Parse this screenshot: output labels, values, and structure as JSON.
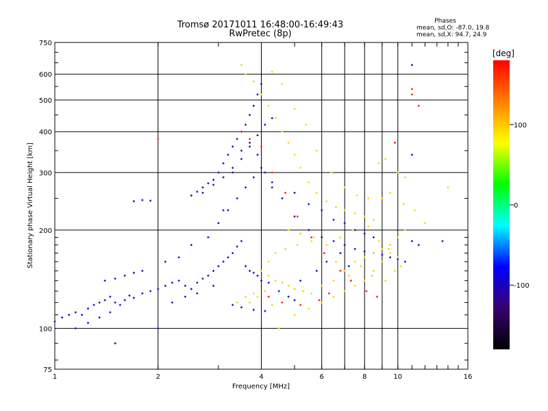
{
  "header": {
    "title_line1": "Tromsø 20171011 16:48:00-16:49:43",
    "title_line2": "RwPretec (8p)",
    "stats_heading": "Phases",
    "stats_o": "mean, sd,O: -87.0, 19.8",
    "stats_x": "mean, sd,X:  94.7, 24.9"
  },
  "chart_data": {
    "type": "scatter",
    "xlabel": "Frequency [MHz]",
    "ylabel": "Stationary phase Virtual Height [km]",
    "xscale": "log",
    "yscale": "log",
    "xlim": [
      1,
      16
    ],
    "ylim": [
      75,
      750
    ],
    "x_ticks": [
      1,
      2,
      4,
      6,
      8,
      10,
      16
    ],
    "x_tick_labels": [
      "1",
      "2",
      "4",
      "6",
      "8",
      "10",
      "16"
    ],
    "y_ticks": [
      75,
      100,
      200,
      300,
      400,
      500,
      600,
      750
    ],
    "y_tick_labels": [
      "75",
      "100",
      "200",
      "300",
      "400",
      "500",
      "600",
      "750"
    ],
    "grid": true,
    "colorbar": {
      "label": "[deg]",
      "range": [
        -180,
        180
      ],
      "ticks": [
        100,
        0,
        -100
      ],
      "tick_labels": [
        "100",
        "0",
        "-100"
      ],
      "colors": [
        "#000000",
        "#3a0070",
        "#0000ff",
        "#00ffff",
        "#00ff00",
        "#ffff00",
        "#ff8000",
        "#ff0000"
      ]
    },
    "series": [
      {
        "name": "O",
        "color_phase": -100,
        "points": [
          [
            1.0,
            105
          ],
          [
            1.05,
            108
          ],
          [
            1.1,
            110
          ],
          [
            1.15,
            112
          ],
          [
            1.2,
            110
          ],
          [
            1.25,
            115
          ],
          [
            1.3,
            118
          ],
          [
            1.35,
            120
          ],
          [
            1.4,
            122
          ],
          [
            1.45,
            125
          ],
          [
            1.5,
            120
          ],
          [
            1.55,
            118
          ],
          [
            1.6,
            122
          ],
          [
            1.65,
            126
          ],
          [
            1.7,
            124
          ],
          [
            1.8,
            128
          ],
          [
            1.9,
            130
          ],
          [
            2.0,
            132
          ],
          [
            2.1,
            135
          ],
          [
            2.2,
            138
          ],
          [
            2.3,
            140
          ],
          [
            2.4,
            135
          ],
          [
            2.5,
            132
          ],
          [
            2.6,
            138
          ],
          [
            2.7,
            142
          ],
          [
            2.8,
            145
          ],
          [
            2.9,
            150
          ],
          [
            3.0,
            155
          ],
          [
            3.1,
            160
          ],
          [
            3.2,
            165
          ],
          [
            3.3,
            170
          ],
          [
            3.4,
            178
          ],
          [
            3.5,
            185
          ],
          [
            1.4,
            140
          ],
          [
            1.5,
            142
          ],
          [
            1.6,
            145
          ],
          [
            1.7,
            148
          ],
          [
            1.8,
            150
          ],
          [
            2.1,
            160
          ],
          [
            2.3,
            165
          ],
          [
            2.5,
            255
          ],
          [
            2.6,
            262
          ],
          [
            2.7,
            270
          ],
          [
            2.8,
            278
          ],
          [
            2.9,
            285
          ],
          [
            3.0,
            300
          ],
          [
            3.1,
            320
          ],
          [
            3.2,
            340
          ],
          [
            3.3,
            360
          ],
          [
            3.4,
            380
          ],
          [
            3.5,
            400
          ],
          [
            3.6,
            420
          ],
          [
            3.7,
            450
          ],
          [
            3.8,
            480
          ],
          [
            3.9,
            520
          ],
          [
            4.0,
            560
          ],
          [
            1.7,
            245
          ],
          [
            1.8,
            247
          ],
          [
            1.9,
            246
          ],
          [
            3.6,
            155
          ],
          [
            3.7,
            150
          ],
          [
            3.8,
            148
          ],
          [
            3.9,
            145
          ],
          [
            4.0,
            140
          ],
          [
            4.2,
            138
          ],
          [
            4.5,
            130
          ],
          [
            4.8,
            125
          ],
          [
            5.0,
            122
          ],
          [
            3.3,
            118
          ],
          [
            3.5,
            116
          ],
          [
            3.8,
            114
          ],
          [
            4.1,
            113
          ],
          [
            1.5,
            90
          ],
          [
            2.0,
            100
          ],
          [
            2.5,
            180
          ],
          [
            2.8,
            190
          ],
          [
            3.0,
            210
          ],
          [
            3.2,
            230
          ],
          [
            3.4,
            250
          ],
          [
            3.6,
            270
          ],
          [
            3.8,
            290
          ],
          [
            4.0,
            310
          ],
          [
            4.3,
            280
          ],
          [
            4.6,
            250
          ],
          [
            5.0,
            220
          ],
          [
            5.5,
            200
          ],
          [
            6.0,
            190
          ],
          [
            6.5,
            185
          ],
          [
            7.0,
            180
          ],
          [
            7.5,
            175
          ],
          [
            8.0,
            172
          ],
          [
            8.5,
            170
          ],
          [
            9.0,
            168
          ],
          [
            9.5,
            165
          ],
          [
            10.0,
            163
          ],
          [
            10.5,
            160
          ],
          [
            11.0,
            185
          ],
          [
            11.5,
            180
          ],
          [
            13.5,
            185
          ],
          [
            5.2,
            140
          ],
          [
            5.8,
            150
          ],
          [
            6.2,
            160
          ],
          [
            6.8,
            170
          ],
          [
            7.2,
            155
          ],
          [
            1.15,
            100
          ],
          [
            1.25,
            104
          ],
          [
            1.35,
            108
          ],
          [
            1.45,
            112
          ],
          [
            2.2,
            120
          ],
          [
            2.4,
            125
          ],
          [
            2.6,
            128
          ],
          [
            2.9,
            135
          ],
          [
            3.1,
            230
          ],
          [
            3.3,
            300
          ],
          [
            3.5,
            330
          ],
          [
            3.7,
            360
          ],
          [
            3.9,
            390
          ],
          [
            4.1,
            420
          ],
          [
            4.3,
            440
          ],
          [
            2.7,
            260
          ],
          [
            2.9,
            275
          ],
          [
            3.1,
            290
          ],
          [
            3.3,
            310
          ],
          [
            3.5,
            350
          ],
          [
            3.7,
            370
          ],
          [
            3.9,
            340
          ],
          [
            4.1,
            300
          ],
          [
            4.3,
            270
          ],
          [
            5.0,
            260
          ],
          [
            5.5,
            240
          ],
          [
            6.0,
            230
          ],
          [
            6.5,
            215
          ],
          [
            7.0,
            210
          ],
          [
            7.5,
            200
          ],
          [
            8.0,
            195
          ],
          [
            8.5,
            190
          ],
          [
            11.0,
            640
          ],
          [
            11.0,
            340
          ]
        ]
      },
      {
        "name": "X",
        "color_phase": 95,
        "points": [
          [
            3.6,
            600
          ],
          [
            3.8,
            570
          ],
          [
            4.0,
            520
          ],
          [
            4.2,
            480
          ],
          [
            4.4,
            440
          ],
          [
            4.6,
            400
          ],
          [
            4.8,
            370
          ],
          [
            5.0,
            340
          ],
          [
            5.2,
            310
          ],
          [
            5.5,
            280
          ],
          [
            5.8,
            260
          ],
          [
            6.2,
            245
          ],
          [
            6.6,
            235
          ],
          [
            7.0,
            230
          ],
          [
            7.5,
            225
          ],
          [
            8.0,
            220
          ],
          [
            8.5,
            215
          ],
          [
            9.0,
            250
          ],
          [
            9.5,
            260
          ],
          [
            10.0,
            300
          ],
          [
            10.5,
            290
          ],
          [
            4.0,
            150
          ],
          [
            4.2,
            145
          ],
          [
            4.4,
            140
          ],
          [
            4.6,
            138
          ],
          [
            4.8,
            135
          ],
          [
            5.0,
            132
          ],
          [
            5.3,
            130
          ],
          [
            5.6,
            128
          ],
          [
            6.0,
            135
          ],
          [
            6.5,
            140
          ],
          [
            7.0,
            150
          ],
          [
            7.5,
            160
          ],
          [
            8.0,
            165
          ],
          [
            8.5,
            170
          ],
          [
            9.0,
            175
          ],
          [
            9.5,
            170
          ],
          [
            10.0,
            165
          ],
          [
            3.7,
            120
          ],
          [
            3.9,
            125
          ],
          [
            4.1,
            130
          ],
          [
            4.3,
            118
          ],
          [
            3.5,
            640
          ],
          [
            4.3,
            610
          ],
          [
            4.6,
            560
          ],
          [
            5.0,
            470
          ],
          [
            5.4,
            420
          ],
          [
            5.8,
            350
          ],
          [
            6.4,
            300
          ],
          [
            7.0,
            270
          ],
          [
            7.6,
            255
          ],
          [
            8.2,
            250
          ],
          [
            8.8,
            320
          ],
          [
            9.2,
            330
          ],
          [
            10.4,
            240
          ],
          [
            11.2,
            230
          ],
          [
            12.0,
            210
          ],
          [
            14.0,
            270
          ],
          [
            4.5,
            100
          ],
          [
            5.0,
            110
          ],
          [
            5.5,
            115
          ],
          [
            6.0,
            120
          ],
          [
            6.5,
            125
          ],
          [
            7.0,
            130
          ],
          [
            7.5,
            135
          ],
          [
            8.0,
            140
          ],
          [
            8.5,
            150
          ],
          [
            9.0,
            160
          ],
          [
            9.5,
            180
          ],
          [
            10.0,
            190
          ],
          [
            10.5,
            200
          ],
          [
            6.2,
            180
          ],
          [
            6.8,
            190
          ],
          [
            7.4,
            200
          ],
          [
            8.2,
            205
          ],
          [
            8.8,
            185
          ],
          [
            9.4,
            175
          ],
          [
            3.4,
            120
          ],
          [
            3.6,
            125
          ],
          [
            3.8,
            128
          ],
          [
            4.2,
            160
          ],
          [
            4.4,
            170
          ],
          [
            4.7,
            175
          ],
          [
            5.1,
            180
          ],
          [
            5.6,
            185
          ],
          [
            6.1,
            170
          ],
          [
            6.6,
            160
          ],
          [
            7.2,
            145
          ],
          [
            7.8,
            155
          ],
          [
            8.4,
            145
          ],
          [
            9.2,
            140
          ],
          [
            9.8,
            150
          ],
          [
            10.2,
            155
          ],
          [
            4.8,
            200
          ],
          [
            5.2,
            195
          ],
          [
            5.7,
            190
          ]
        ]
      },
      {
        "name": "red",
        "color_phase": 170,
        "points": [
          [
            11.0,
            540
          ],
          [
            11.0,
            520
          ],
          [
            11.5,
            480
          ],
          [
            3.5,
            400
          ],
          [
            3.7,
            380
          ],
          [
            4.0,
            360
          ],
          [
            4.3,
            300
          ],
          [
            4.7,
            260
          ],
          [
            5.1,
            220
          ],
          [
            5.6,
            190
          ],
          [
            6.1,
            170
          ],
          [
            6.8,
            150
          ],
          [
            7.3,
            140
          ],
          [
            8.1,
            130
          ],
          [
            8.7,
            125
          ],
          [
            4.2,
            125
          ],
          [
            4.6,
            120
          ],
          [
            5.2,
            118
          ],
          [
            5.9,
            122
          ],
          [
            6.3,
            128
          ],
          [
            9.8,
            370
          ],
          [
            2.0,
            380
          ]
        ]
      }
    ]
  }
}
